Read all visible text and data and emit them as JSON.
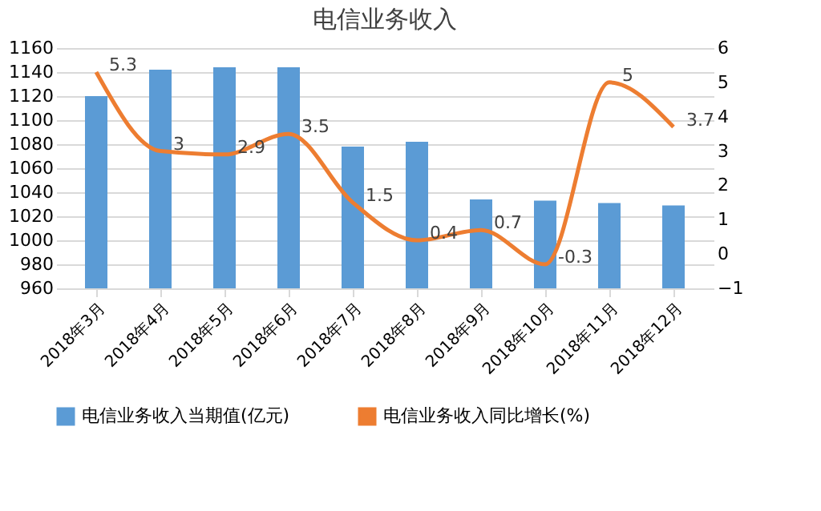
{
  "chart_data": {
    "type": "bar",
    "title": "电信业务收入",
    "categories": [
      "2018年3月",
      "2018年4月",
      "2018年5月",
      "2018年6月",
      "2018年7月",
      "2018年8月",
      "2018年9月",
      "2018年10月",
      "2018年11月",
      "2018年12月"
    ],
    "series": [
      {
        "name": "电信业务收入当期值(亿元)",
        "color": "#5b9bd5",
        "values": [
          1120,
          1142,
          1144,
          1144,
          1078,
          1082,
          1034,
          1033,
          1031,
          1029
        ]
      },
      {
        "name": "电信业务收入同比增长(%)",
        "type": "line",
        "axis": "y2",
        "color": "#ed7d31",
        "values": [
          5.3,
          3,
          2.9,
          3.5,
          1.5,
          0.4,
          0.7,
          -0.3,
          5,
          3.7
        ],
        "data_labels": true
      }
    ],
    "ylim": [
      960,
      1160
    ],
    "yticks": [
      960,
      980,
      1000,
      1020,
      1040,
      1060,
      1080,
      1100,
      1120,
      1140,
      1160
    ],
    "y2lim": [
      -1,
      6
    ],
    "y2ticks": [
      -1,
      0,
      1,
      2,
      3,
      4,
      5,
      6
    ],
    "grid": "y",
    "legend": "bottom",
    "marker": "none",
    "line_style": "solid"
  }
}
